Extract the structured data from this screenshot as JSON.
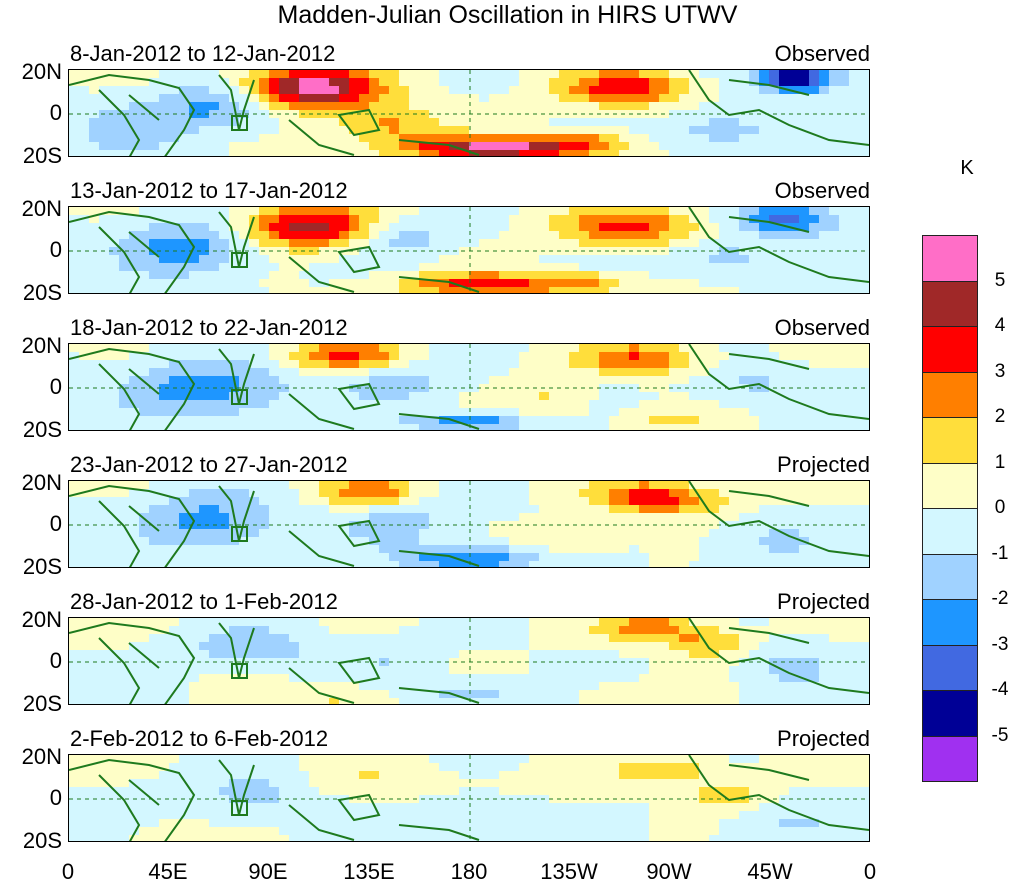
{
  "title": "Madden-Julian Oscillation in HIRS UTWV",
  "panels": [
    {
      "period": "8-Jan-2012 to 12-Jan-2012",
      "status": "Observed",
      "amp": 1.0
    },
    {
      "period": "13-Jan-2012 to 17-Jan-2012",
      "status": "Observed",
      "amp": 0.9
    },
    {
      "period": "18-Jan-2012 to 22-Jan-2012",
      "status": "Observed",
      "amp": 0.8
    },
    {
      "period": "23-Jan-2012 to 27-Jan-2012",
      "status": "Projected",
      "amp": 0.65
    },
    {
      "period": "28-Jan-2012 to 1-Feb-2012",
      "status": "Projected",
      "amp": 0.5
    },
    {
      "period": "2-Feb-2012 to 6-Feb-2012",
      "status": "Projected",
      "amp": 0.35
    }
  ],
  "lat_labels": [
    "20N",
    "0",
    "20S"
  ],
  "lon_labels": [
    "0",
    "45E",
    "90E",
    "135E",
    "180",
    "135W",
    "90W",
    "45W",
    "0"
  ],
  "colorbar": {
    "unit": "K",
    "colors": [
      "#ff6ec7",
      "#a02828",
      "#ff0000",
      "#ff7f00",
      "#ffde3b",
      "#fefec7",
      "#d3f7ff",
      "#a0d2ff",
      "#1e96ff",
      "#4169e1",
      "#000096",
      "#a030f0"
    ],
    "labels": [
      "5",
      "4",
      "3",
      "2",
      "1",
      "0",
      "-1",
      "-2",
      "-3",
      "-4",
      "-5"
    ]
  },
  "colors": {
    "coast": "#1e7a1e",
    "equator": "#1e7a1e",
    "border": "#000000"
  }
}
